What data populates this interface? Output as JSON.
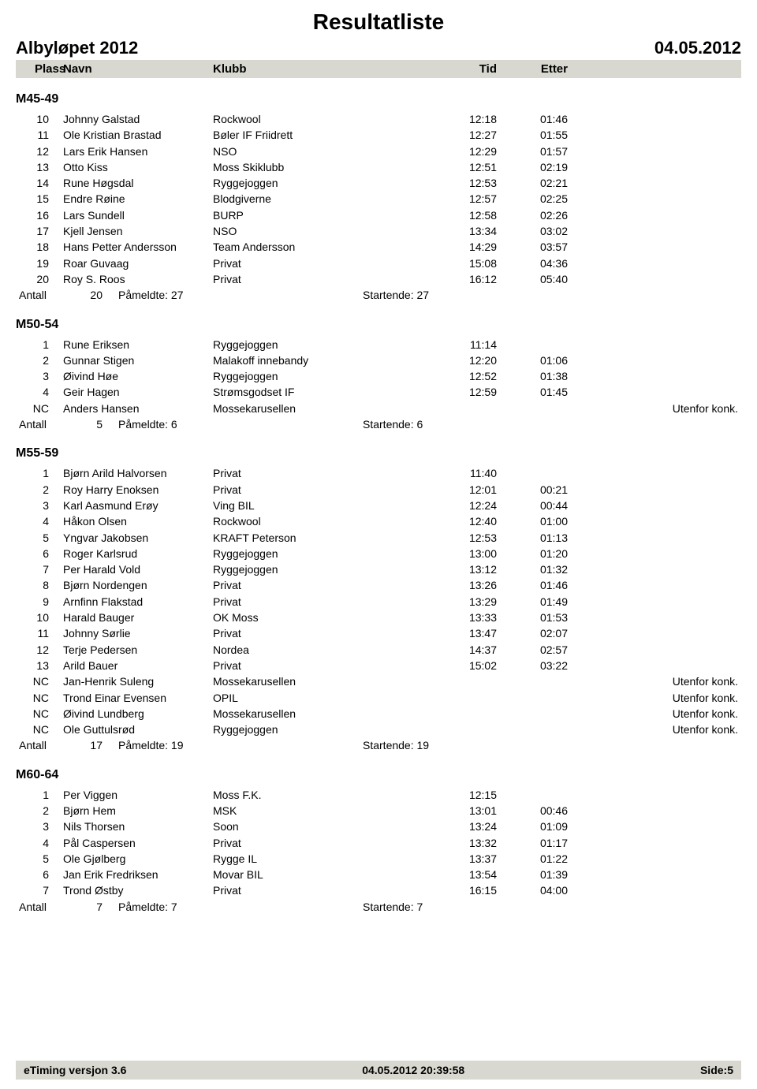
{
  "page": {
    "title": "Resultatliste",
    "event_name": "Albyløpet 2012",
    "event_date": "04.05.2012"
  },
  "columns": {
    "plass": "Plass",
    "navn": "Navn",
    "klubb": "Klubb",
    "tid": "Tid",
    "etter": "Etter"
  },
  "groups": [
    {
      "title": "M45-49",
      "rows": [
        {
          "plass": "10",
          "navn": "Johnny Galstad",
          "klubb": "Rockwool",
          "tid": "12:18",
          "etter": "01:46",
          "note": ""
        },
        {
          "plass": "11",
          "navn": "Ole Kristian Brastad",
          "klubb": "Bøler IF Friidrett",
          "tid": "12:27",
          "etter": "01:55",
          "note": ""
        },
        {
          "plass": "12",
          "navn": "Lars Erik Hansen",
          "klubb": "NSO",
          "tid": "12:29",
          "etter": "01:57",
          "note": ""
        },
        {
          "plass": "13",
          "navn": "Otto Kiss",
          "klubb": "Moss Skiklubb",
          "tid": "12:51",
          "etter": "02:19",
          "note": ""
        },
        {
          "plass": "14",
          "navn": "Rune Høgsdal",
          "klubb": "Ryggejoggen",
          "tid": "12:53",
          "etter": "02:21",
          "note": ""
        },
        {
          "plass": "15",
          "navn": "Endre Røine",
          "klubb": "Blodgiverne",
          "tid": "12:57",
          "etter": "02:25",
          "note": ""
        },
        {
          "plass": "16",
          "navn": "Lars Sundell",
          "klubb": "BURP",
          "tid": "12:58",
          "etter": "02:26",
          "note": ""
        },
        {
          "plass": "17",
          "navn": "Kjell Jensen",
          "klubb": "NSO",
          "tid": "13:34",
          "etter": "03:02",
          "note": ""
        },
        {
          "plass": "18",
          "navn": "Hans Petter Andersson",
          "klubb": "Team Andersson",
          "tid": "14:29",
          "etter": "03:57",
          "note": ""
        },
        {
          "plass": "19",
          "navn": "Roar Guvaag",
          "klubb": "Privat",
          "tid": "15:08",
          "etter": "04:36",
          "note": ""
        },
        {
          "plass": "20",
          "navn": "Roy S. Roos",
          "klubb": "Privat",
          "tid": "16:12",
          "etter": "05:40",
          "note": ""
        }
      ],
      "summary": {
        "label": "Antall",
        "antall": "20",
        "pameldte": "Påmeldte:  27",
        "startende": "Startende: 27"
      }
    },
    {
      "title": "M50-54",
      "rows": [
        {
          "plass": "1",
          "navn": "Rune Eriksen",
          "klubb": "Ryggejoggen",
          "tid": "11:14",
          "etter": "",
          "note": ""
        },
        {
          "plass": "2",
          "navn": "Gunnar Stigen",
          "klubb": "Malakoff innebandy",
          "tid": "12:20",
          "etter": "01:06",
          "note": ""
        },
        {
          "plass": "3",
          "navn": "Øivind Høe",
          "klubb": "Ryggejoggen",
          "tid": "12:52",
          "etter": "01:38",
          "note": ""
        },
        {
          "plass": "4",
          "navn": "Geir Hagen",
          "klubb": "Strømsgodset IF",
          "tid": "12:59",
          "etter": "01:45",
          "note": ""
        },
        {
          "plass": "NC",
          "navn": "Anders Hansen",
          "klubb": "Mossekarusellen",
          "tid": "",
          "etter": "",
          "note": "Utenfor konk."
        }
      ],
      "summary": {
        "label": "Antall",
        "antall": "5",
        "pameldte": "Påmeldte:  6",
        "startende": "Startende: 6"
      }
    },
    {
      "title": "M55-59",
      "rows": [
        {
          "plass": "1",
          "navn": "Bjørn Arild Halvorsen",
          "klubb": "Privat",
          "tid": "11:40",
          "etter": "",
          "note": ""
        },
        {
          "plass": "2",
          "navn": "Roy Harry Enoksen",
          "klubb": "Privat",
          "tid": "12:01",
          "etter": "00:21",
          "note": ""
        },
        {
          "plass": "3",
          "navn": "Karl Aasmund Erøy",
          "klubb": "Ving BIL",
          "tid": "12:24",
          "etter": "00:44",
          "note": ""
        },
        {
          "plass": "4",
          "navn": "Håkon Olsen",
          "klubb": "Rockwool",
          "tid": "12:40",
          "etter": "01:00",
          "note": ""
        },
        {
          "plass": "5",
          "navn": "Yngvar Jakobsen",
          "klubb": "KRAFT Peterson",
          "tid": "12:53",
          "etter": "01:13",
          "note": ""
        },
        {
          "plass": "6",
          "navn": "Roger Karlsrud",
          "klubb": "Ryggejoggen",
          "tid": "13:00",
          "etter": "01:20",
          "note": ""
        },
        {
          "plass": "7",
          "navn": "Per Harald Vold",
          "klubb": "Ryggejoggen",
          "tid": "13:12",
          "etter": "01:32",
          "note": ""
        },
        {
          "plass": "8",
          "navn": "Bjørn Nordengen",
          "klubb": "Privat",
          "tid": "13:26",
          "etter": "01:46",
          "note": ""
        },
        {
          "plass": "9",
          "navn": "Arnfinn Flakstad",
          "klubb": "Privat",
          "tid": "13:29",
          "etter": "01:49",
          "note": ""
        },
        {
          "plass": "10",
          "navn": "Harald Bauger",
          "klubb": "OK Moss",
          "tid": "13:33",
          "etter": "01:53",
          "note": ""
        },
        {
          "plass": "11",
          "navn": "Johnny Sørlie",
          "klubb": "Privat",
          "tid": "13:47",
          "etter": "02:07",
          "note": ""
        },
        {
          "plass": "12",
          "navn": "Terje Pedersen",
          "klubb": "Nordea",
          "tid": "14:37",
          "etter": "02:57",
          "note": ""
        },
        {
          "plass": "13",
          "navn": "Arild Bauer",
          "klubb": "Privat",
          "tid": "15:02",
          "etter": "03:22",
          "note": ""
        },
        {
          "plass": "NC",
          "navn": "Jan-Henrik Suleng",
          "klubb": "Mossekarusellen",
          "tid": "",
          "etter": "",
          "note": "Utenfor konk."
        },
        {
          "plass": "NC",
          "navn": "Trond Einar Evensen",
          "klubb": "OPIL",
          "tid": "",
          "etter": "",
          "note": "Utenfor konk."
        },
        {
          "plass": "NC",
          "navn": "Øivind Lundberg",
          "klubb": "Mossekarusellen",
          "tid": "",
          "etter": "",
          "note": "Utenfor konk."
        },
        {
          "plass": "NC",
          "navn": "Ole Guttulsrød",
          "klubb": "Ryggejoggen",
          "tid": "",
          "etter": "",
          "note": "Utenfor konk."
        }
      ],
      "summary": {
        "label": "Antall",
        "antall": "17",
        "pameldte": "Påmeldte:  19",
        "startende": "Startende: 19"
      }
    },
    {
      "title": "M60-64",
      "rows": [
        {
          "plass": "1",
          "navn": "Per Viggen",
          "klubb": "Moss F.K.",
          "tid": "12:15",
          "etter": "",
          "note": ""
        },
        {
          "plass": "2",
          "navn": "Bjørn Hem",
          "klubb": "MSK",
          "tid": "13:01",
          "etter": "00:46",
          "note": ""
        },
        {
          "plass": "3",
          "navn": "Nils Thorsen",
          "klubb": "Soon",
          "tid": "13:24",
          "etter": "01:09",
          "note": ""
        },
        {
          "plass": "4",
          "navn": "Pål Caspersen",
          "klubb": "Privat",
          "tid": "13:32",
          "etter": "01:17",
          "note": ""
        },
        {
          "plass": "5",
          "navn": "Ole Gjølberg",
          "klubb": "Rygge IL",
          "tid": "13:37",
          "etter": "01:22",
          "note": ""
        },
        {
          "plass": "6",
          "navn": "Jan Erik Fredriksen",
          "klubb": "Movar BIL",
          "tid": "13:54",
          "etter": "01:39",
          "note": ""
        },
        {
          "plass": "7",
          "navn": "Trond Østby",
          "klubb": "Privat",
          "tid": "16:15",
          "etter": "04:00",
          "note": ""
        }
      ],
      "summary": {
        "label": "Antall",
        "antall": "7",
        "pameldte": "Påmeldte:  7",
        "startende": "Startende: 7"
      }
    }
  ],
  "footer": {
    "left": "eTiming versjon 3.6",
    "center": "04.05.2012 20:39:58",
    "right": "Side:5"
  }
}
